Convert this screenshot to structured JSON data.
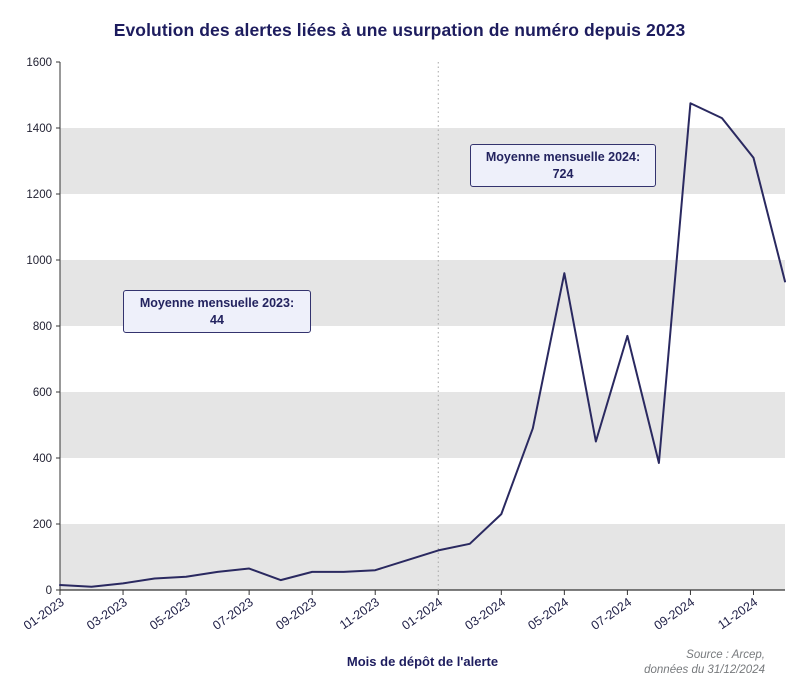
{
  "title": "Evolution des alertes liées à une usurpation de numéro depuis 2023",
  "xaxis_title": "Mois de dépôt de l'alerte",
  "source": {
    "line1": "Source : Arcep,",
    "line2": "données du 31/12/2024"
  },
  "annotations": {
    "avg2023_label": "Moyenne mensuelle 2023:",
    "avg2023_value": "44",
    "avg2024_label": "Moyenne mensuelle 2024:",
    "avg2024_value": "724"
  },
  "colors": {
    "line": "#2a2960",
    "title": "#1d1c5e",
    "band": "#e5e5e5",
    "axis": "#333333",
    "tick_label": "#222233",
    "xtick_label": "#1f1f46",
    "vline": "#a8a8a8",
    "annotation_bg": "#eef0fa",
    "annotation_border": "#33336e"
  },
  "chart_data": {
    "type": "line",
    "x": [
      "01-2023",
      "02-2023",
      "03-2023",
      "04-2023",
      "05-2023",
      "06-2023",
      "07-2023",
      "08-2023",
      "09-2023",
      "10-2023",
      "11-2023",
      "12-2023",
      "01-2024",
      "02-2024",
      "03-2024",
      "04-2024",
      "05-2024",
      "06-2024",
      "07-2024",
      "08-2024",
      "09-2024",
      "10-2024",
      "11-2024",
      "12-2024"
    ],
    "values": [
      15,
      10,
      20,
      35,
      40,
      55,
      65,
      30,
      55,
      55,
      60,
      90,
      120,
      140,
      230,
      490,
      960,
      450,
      770,
      385,
      1475,
      1430,
      1310,
      935
    ],
    "ylim": [
      0,
      1600
    ],
    "yticks": [
      0,
      200,
      400,
      600,
      800,
      1000,
      1200,
      1400,
      1600
    ],
    "xtick_labels": [
      "01-2023",
      "03-2023",
      "05-2023",
      "07-2023",
      "09-2023",
      "11-2023",
      "01-2024",
      "03-2024",
      "05-2024",
      "07-2024",
      "09-2024",
      "11-2024"
    ],
    "vline_x": "01-2024",
    "gray_band_starts": [
      0,
      400,
      800,
      1200
    ],
    "band_height": 200,
    "legend": "none",
    "grid": "horizontal-bands"
  }
}
